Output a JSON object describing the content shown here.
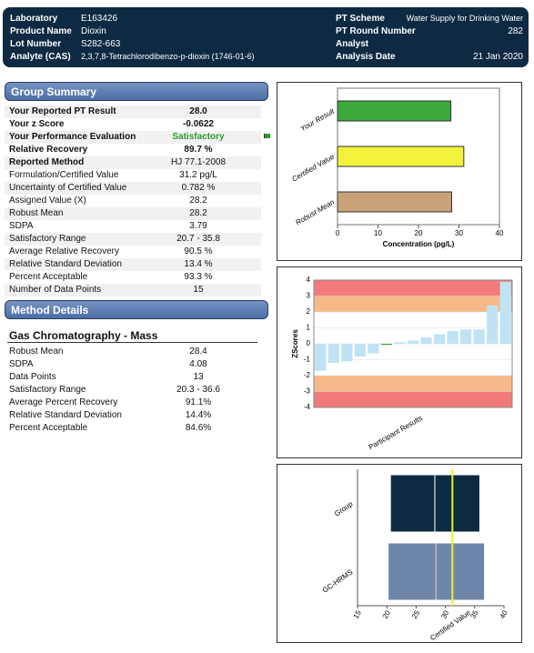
{
  "header": {
    "left": [
      {
        "label": "Laboratory",
        "value": "E163426"
      },
      {
        "label": "Product Name",
        "value": "Dioxin"
      },
      {
        "label": "Lot Number",
        "value": "S282-663"
      },
      {
        "label": "Analyte (CAS)",
        "value": "2,3,7,8-Tetrachlorodibenzo-p-dioxin (1746-01-6)"
      }
    ],
    "right": [
      {
        "label": "PT Scheme",
        "value": "Water Supply for Drinking Water"
      },
      {
        "label": "PT Round Number",
        "value": "282"
      },
      {
        "label": "Analyst"
      },
      {
        "label": "Analysis Date",
        "value": "21 Jan 2020"
      }
    ]
  },
  "group_summary": {
    "title": "Group Summary",
    "rows": [
      [
        "Your Reported PT Result",
        "28.0"
      ],
      [
        "Your z Score",
        "-0.0622"
      ],
      [
        "Your Performance Evaluation",
        "Satisfactory"
      ],
      [
        "Relative Recovery",
        "89.7 %"
      ],
      [
        "Reported Method",
        "HJ 77.1-2008"
      ],
      [
        "Formulation/Certified Value",
        "31.2 pg/L"
      ],
      [
        "Uncertainty of Certified Value",
        "0.782 %"
      ],
      [
        "Assigned Value (X)",
        "28.2"
      ],
      [
        "Robust Mean",
        "28.2"
      ],
      [
        "SDPA",
        "3.79"
      ],
      [
        "Satisfactory Range",
        "20.7 - 35.8"
      ],
      [
        "Average Relative Recovery",
        "90.5 %"
      ],
      [
        "Relative Standard Deviation",
        "13.4 %"
      ],
      [
        "Percent Acceptable",
        "93.3 %"
      ],
      [
        "Number of Data Points",
        "15"
      ]
    ]
  },
  "method_details": {
    "title": "Method Details",
    "method": "Gas Chromatography - Mass",
    "rows": [
      [
        "Robust Mean",
        "28.4"
      ],
      [
        "SDPA",
        "4.08"
      ],
      [
        "Data Points",
        "13"
      ],
      [
        "Satisfactory Range",
        "20.3 - 36.6"
      ],
      [
        "Average Percent Recovery",
        "91.1%"
      ],
      [
        "Relative Standard Deviation",
        "14.4%"
      ],
      [
        "Percent Acceptable",
        "84.6%"
      ]
    ]
  },
  "chart_data": [
    {
      "type": "hbar",
      "categories": [
        "Your Result",
        "Certified Value",
        "Robust Mean"
      ],
      "values": [
        28.0,
        31.2,
        28.2
      ],
      "colors": [
        "#3aa83a",
        "#f2f23a",
        "#c9a27a"
      ],
      "x_label": "Concentration (pg/L)",
      "xlim": [
        0,
        40
      ],
      "xticks": [
        0,
        10,
        20,
        30,
        40
      ]
    },
    {
      "type": "zbar",
      "y_label": "ZScores",
      "x_label": "Participant Results",
      "values": [
        -1.7,
        -1.2,
        -1.1,
        -0.8,
        -0.6,
        -0.06,
        0.1,
        0.2,
        0.4,
        0.6,
        0.8,
        0.9,
        0.9,
        2.4,
        3.9
      ],
      "colors": [
        "#bfe3f5",
        "#bfe3f5",
        "#bfe3f5",
        "#bfe3f5",
        "#bfe3f5",
        "#2e9a2e",
        "#bfe3f5",
        "#bfe3f5",
        "#bfe3f5",
        "#bfe3f5",
        "#bfe3f5",
        "#bfe3f5",
        "#bfe3f5",
        "#bfe3f5",
        "#bfe3f5"
      ],
      "bands": [
        {
          "from": 3,
          "to": 4,
          "color": "#f27a7a"
        },
        {
          "from": 2,
          "to": 3,
          "color": "#f7b98a"
        },
        {
          "from": -3,
          "to": -2,
          "color": "#f7b98a"
        },
        {
          "from": -4,
          "to": -3,
          "color": "#f27a7a"
        }
      ],
      "ylim": [
        -4,
        4
      ],
      "yticks": [
        -4,
        -3,
        -2,
        -1,
        0,
        1,
        2,
        3,
        4
      ]
    },
    {
      "type": "range_bar",
      "categories": [
        "Group",
        "GC-HRMS"
      ],
      "ranges": [
        [
          20.7,
          35.8
        ],
        [
          20.3,
          36.6
        ]
      ],
      "means": [
        28.2,
        28.4
      ],
      "colors": [
        "#0d2a42",
        "#6f86ab"
      ],
      "reference": {
        "label": "Certified Value",
        "value": 31.2,
        "color": "#f0f020"
      },
      "xlim": [
        15,
        40
      ],
      "xticks": [
        15,
        20,
        25,
        30,
        35,
        40
      ]
    }
  ]
}
